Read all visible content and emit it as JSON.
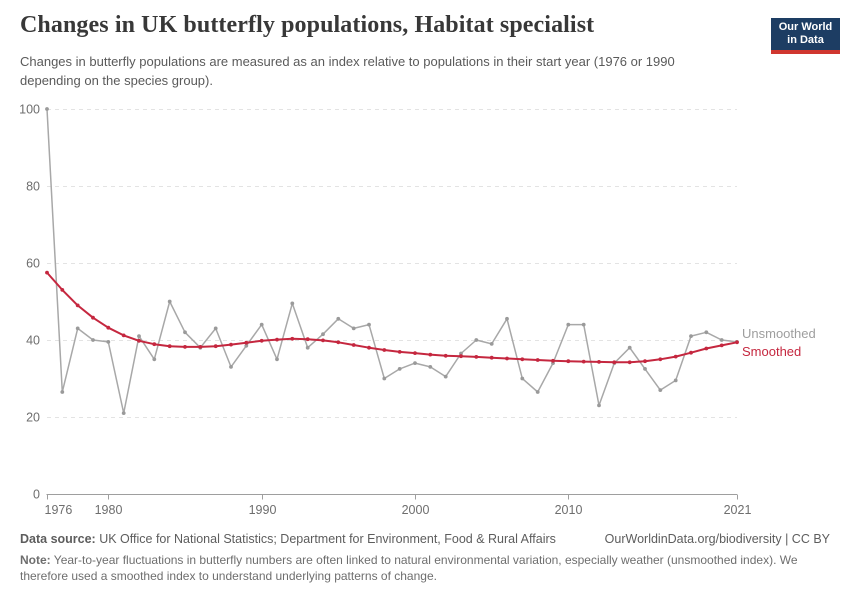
{
  "header": {
    "title": "Changes in UK butterfly populations, Habitat specialist",
    "subtitle": "Changes in butterfly populations are measured as an index relative to populations in their start year (1976 or 1990 depending on the species group)."
  },
  "logo": {
    "line1": "Our World",
    "line2": "in Data",
    "bg_color": "#1d3d63",
    "bar_color": "#d0362f"
  },
  "chart_data": {
    "type": "line",
    "title": "Changes in UK butterfly populations, Habitat specialist",
    "x": [
      1976,
      1977,
      1978,
      1979,
      1980,
      1981,
      1982,
      1983,
      1984,
      1985,
      1986,
      1987,
      1988,
      1989,
      1990,
      1991,
      1992,
      1993,
      1994,
      1995,
      1996,
      1997,
      1998,
      1999,
      2000,
      2001,
      2002,
      2003,
      2004,
      2005,
      2006,
      2007,
      2008,
      2009,
      2010,
      2011,
      2012,
      2013,
      2014,
      2015,
      2016,
      2017,
      2018,
      2019,
      2020,
      2021
    ],
    "series": [
      {
        "name": "Unsmoothed",
        "color": "#a8a8a8",
        "dot_color": "#9a9a9a",
        "values": [
          100,
          26.5,
          43,
          40,
          39.5,
          21,
          41,
          35,
          50,
          42,
          38,
          43,
          33,
          38.5,
          44,
          35,
          49.5,
          38,
          41.5,
          45.5,
          43,
          44,
          30,
          32.5,
          34,
          33,
          30.5,
          36.5,
          40,
          39,
          45.5,
          30,
          26.5,
          34,
          44,
          44,
          23,
          34,
          38,
          32.5,
          27,
          29.5,
          41,
          42,
          40,
          39.5
        ]
      },
      {
        "name": "Smoothed",
        "color": "#c5273f",
        "dot_color": "#c5273f",
        "values": [
          57.5,
          53,
          49,
          45.8,
          43.2,
          41.2,
          39.8,
          38.9,
          38.4,
          38.2,
          38.2,
          38.4,
          38.8,
          39.3,
          39.8,
          40.1,
          40.3,
          40.2,
          39.9,
          39.4,
          38.7,
          38,
          37.4,
          36.9,
          36.6,
          36.2,
          35.9,
          35.8,
          35.6,
          35.4,
          35.2,
          35,
          34.8,
          34.6,
          34.5,
          34.4,
          34.3,
          34.2,
          34.2,
          34.5,
          35,
          35.7,
          36.7,
          37.8,
          38.6,
          39.4
        ]
      }
    ],
    "xlabel": "",
    "ylabel": "",
    "ylim": [
      0,
      100
    ],
    "y_ticks": [
      0,
      20,
      40,
      60,
      80,
      100
    ],
    "x_ticks": [
      1976,
      1980,
      1990,
      2000,
      2010,
      2021
    ],
    "grid": "horizontal-dashed",
    "legend_position": "right-of-line-ends",
    "axis_label_color": "#6e6e6e",
    "gridline_color": "#e3e3e3",
    "axis_line_color": "#9e9e9e"
  },
  "footer": {
    "datasource_label": "Data source:",
    "datasource_text": " UK Office for National Statistics; Department for Environment, Food & Rural Affairs",
    "link_text": "OurWorldinData.org/biodiversity | CC BY",
    "note_label": "Note:",
    "note_text": " Year-to-year fluctuations in butterfly numbers are often linked to natural environmental variation, especially weather (unsmoothed index). We therefore used a smoothed index to understand underlying patterns of change."
  }
}
